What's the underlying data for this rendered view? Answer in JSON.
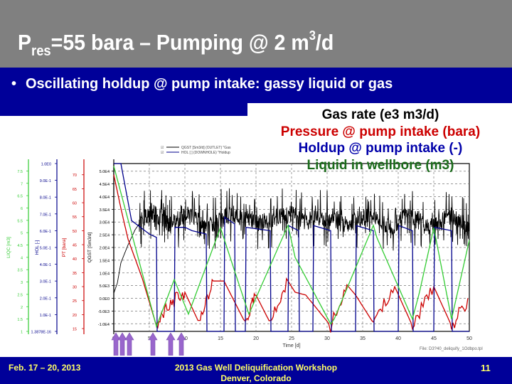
{
  "slide": {
    "title": {
      "prefix": "P",
      "sub": "res",
      "main": "=55 bara – Pumping @ 2 m",
      "sup": "3",
      "suffix": "/d"
    },
    "bullet": {
      "marker": "•",
      "text": "Oscillating holdup @ pump intake: gassy liquid or gas"
    },
    "legend_text": [
      {
        "text": "Gas rate (e3 m3/d)",
        "color": "#000000"
      },
      {
        "text": "Pressure @ pump intake (bara)",
        "color": "#cc0000"
      },
      {
        "text": "Holdup @ pump intake (-)",
        "color": "#0000aa"
      },
      {
        "text": "Liquid in wellbore (m3)",
        "color": "#1a6b1a"
      }
    ],
    "footer": {
      "left": "Feb. 17 – 20, 2013",
      "center_line1": "2013 Gas Well Deliquification Workshop",
      "center_line2": "Denver, Colorado",
      "page": "11"
    },
    "file_tag": "File: D3?40_deliquify_1Odbpo.tpl"
  },
  "colors": {
    "title_bg": "#808080",
    "band_bg": "#000099",
    "footer_text": "#ffff66",
    "gas": "#000000",
    "pressure": "#cc0000",
    "holdup": "#00008b",
    "liquid": "#33cc33",
    "arrow": "#9966cc"
  },
  "chart_data": {
    "type": "line",
    "title": "",
    "xlabel": "Time [d]",
    "xlim": [
      0,
      50
    ],
    "x_ticks": [
      0,
      5,
      10,
      15,
      20,
      25,
      30,
      35,
      40,
      45,
      50
    ],
    "grid": true,
    "legend_entries": [
      "QGST [Sm3/d] (OUTLET) \"Gas",
      "HOL [ ] (DOWNHOLE) \"Holdup"
    ],
    "axes": [
      {
        "name": "LIQC [m3]",
        "color": "#33cc33",
        "ticks": [
          "7.5",
          "7",
          "6.5",
          "6",
          "5.5",
          "5",
          "4.5",
          "4",
          "3.5",
          "3",
          "2.5",
          "2",
          "1.5",
          "1"
        ],
        "range": [
          1,
          7.8
        ]
      },
      {
        "name": "HOL [-]",
        "color": "#00008b",
        "ticks": [
          "1.0E0",
          "9.0E-1",
          "8.0E-1",
          "7.0E-1",
          "6.0E-1",
          "5.0E-1",
          "4.0E-1",
          "3.0E-1",
          "2.0E-1",
          "1.0E-1",
          "1.3878E-16"
        ],
        "range": [
          0,
          1
        ]
      },
      {
        "name": "PT [bara]",
        "color": "#cc0000",
        "ticks": [
          "70",
          "65",
          "60",
          "55",
          "50",
          "45",
          "40",
          "35",
          "30",
          "25",
          "20",
          "15"
        ],
        "range": [
          14,
          74
        ]
      },
      {
        "name": "QGST [Sm3/d]",
        "color": "#000000",
        "ticks": [
          "5.0E4",
          "4.5E4",
          "4.0E4",
          "3.5E4",
          "3.0E4",
          "2.5E4",
          "2.0E4",
          "1.5E4",
          "1.0E4",
          "5.0E3",
          "0.0E0",
          "-5.0E3",
          "-1.0E4"
        ],
        "range": [
          -13000,
          53000
        ]
      }
    ],
    "series": [
      {
        "name": "Gas rate (QGST)",
        "unit": "Sm3/d",
        "color": "#000000",
        "x": [
          0,
          0.5,
          1,
          2,
          3,
          4,
          5.5,
          7,
          8,
          10,
          12,
          13,
          15,
          17,
          19,
          21,
          23,
          25,
          27,
          29,
          31,
          33,
          35,
          37,
          39,
          41,
          43,
          45,
          47,
          49,
          50
        ],
        "y": [
          2000,
          6000,
          14000,
          21000,
          27000,
          31000,
          34000,
          31000,
          29000,
          33000,
          31000,
          27000,
          32000,
          33000,
          31000,
          30000,
          32000,
          33000,
          30000,
          32000,
          31000,
          29000,
          32000,
          31000,
          28000,
          32000,
          31000,
          28000,
          32000,
          30000,
          26000
        ]
      },
      {
        "name": "Pressure @ pump intake (PT)",
        "unit": "bara",
        "color": "#cc0000",
        "x": [
          0,
          1,
          2,
          4,
          6,
          8,
          10,
          12,
          14,
          15.5,
          18.5,
          20,
          22,
          24.5,
          25.5,
          27,
          30.5,
          33,
          34,
          36.5,
          39.5,
          42,
          45,
          47.5,
          50
        ],
        "y": [
          70,
          58,
          47,
          33,
          16,
          24,
          28,
          17,
          32,
          32,
          17,
          27,
          17,
          32,
          28,
          27,
          16,
          30,
          27,
          17,
          30,
          16,
          30,
          16,
          26
        ]
      },
      {
        "name": "Holdup @ pump intake (HOL)",
        "unit": "-",
        "color": "#00008b",
        "x": [
          0,
          1,
          2.5,
          5,
          6,
          6.1,
          8.5,
          8.6,
          10,
          11,
          13,
          13.1,
          15.5,
          15.6,
          17,
          17.1,
          18.5,
          18.6,
          22,
          22.1,
          24.5,
          24.6,
          26,
          26.1,
          28,
          28.1,
          30.5,
          30.6,
          34,
          34.1,
          36.5,
          36.6,
          40,
          40.1,
          42,
          42.1,
          45,
          45.1,
          47.5,
          47.6,
          50
        ],
        "y": [
          1.0,
          1.0,
          0.66,
          0.58,
          0.56,
          0.0,
          0.0,
          0.62,
          0.62,
          0.6,
          0.58,
          0.0,
          0.0,
          0.68,
          0.64,
          0.0,
          0.0,
          0.62,
          0.6,
          0.0,
          0.0,
          0.63,
          0.6,
          0.0,
          0.0,
          0.63,
          0.6,
          0.0,
          0.0,
          0.63,
          0.6,
          0.0,
          0.0,
          0.63,
          0.6,
          0.0,
          0.0,
          0.62,
          0.6,
          0.0,
          0.0
        ]
      },
      {
        "name": "Liquid in wellbore (LIQC)",
        "unit": "m3",
        "color": "#33cc33",
        "x": [
          0,
          6,
          8.5,
          10.5,
          15,
          17.5,
          19,
          24.5,
          25.5,
          30.5,
          31,
          36.5,
          37,
          42,
          43,
          45,
          47.5,
          50
        ],
        "y": [
          7.7,
          1.2,
          3.1,
          1.7,
          5.2,
          3.0,
          1.7,
          5.3,
          4.0,
          1.3,
          1.5,
          5.3,
          4.8,
          1.5,
          2.6,
          5.2,
          1.5,
          4.7
        ]
      }
    ],
    "annotations": [
      "Purple upward arrows below x-axis at approx t = 0.3, 1.2, 2.2, 5.5, 8, 9.5 d"
    ]
  }
}
